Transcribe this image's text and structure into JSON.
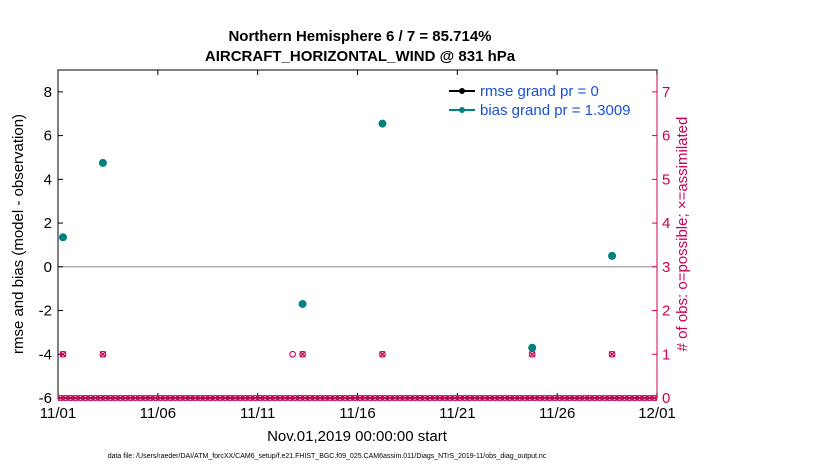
{
  "chart_data": {
    "type": "scatter",
    "title_line1": "Northern Hemisphere 6 / 7 = 85.714%",
    "title_line2": "AIRCRAFT_HORIZONTAL_WIND @ 831 hPa",
    "ylabel_left": "rmse and bias (model - observation)",
    "ylabel_right": "# of obs: o=possible; ×=assimilated",
    "xlabel": "Nov.01,2019 00:00:00 start",
    "footnote": "data file: /Users/raeder/DAI/ATM_forcXX/CAM6_setup/f.e21.FHIST_BGC.f09_025.CAM6assim.011/Diags_NTrS_2019-11/obs_diag_output.nc",
    "x_range": [
      0,
      30
    ],
    "y_left_range": [
      -6,
      9
    ],
    "y_right_range": [
      0,
      7.5
    ],
    "y_left_ticks": [
      "-6",
      "-4",
      "-2",
      "0",
      "2",
      "4",
      "6",
      "8"
    ],
    "y_left_tick_values": [
      -6,
      -4,
      -2,
      0,
      2,
      4,
      6,
      8
    ],
    "y_right_ticks": [
      "0",
      "1",
      "2",
      "3",
      "4",
      "5",
      "6",
      "7"
    ],
    "y_right_tick_values": [
      0,
      1,
      2,
      3,
      4,
      5,
      6,
      7
    ],
    "x_ticks": [
      "11/01",
      "11/06",
      "11/11",
      "11/16",
      "11/21",
      "11/26",
      "12/01"
    ],
    "x_tick_values": [
      0,
      5,
      10,
      15,
      20,
      25,
      30
    ],
    "legend": [
      {
        "label": "rmse grand pr = 0",
        "color": "#000000"
      },
      {
        "label": "bias grand pr = 1.3009",
        "color": "#008080"
      }
    ],
    "series": [
      {
        "name": "bias",
        "color": "#008080",
        "x": [
          0.25,
          2.25,
          12.25,
          16.25,
          23.75,
          27.75
        ],
        "y": [
          1.35,
          4.75,
          -1.7,
          6.55,
          -3.7,
          0.5
        ]
      },
      {
        "name": "obs_possible",
        "color": "#cc0055",
        "x": [
          0.25,
          2.25,
          11.75,
          12.25,
          16.25,
          23.75,
          27.75
        ],
        "y": [
          1,
          1,
          1,
          1,
          1,
          1,
          1
        ]
      },
      {
        "name": "obs_assimilated",
        "color": "#cc0055",
        "x": [
          0.25,
          2.25,
          12.25,
          16.25,
          23.75,
          27.75
        ],
        "y": [
          1,
          1,
          1,
          1,
          1,
          1
        ]
      }
    ],
    "zero_line_y": 0,
    "grid": false,
    "legend_position": "top-right"
  },
  "colors": {
    "bias": "#008080",
    "rmse": "#000000",
    "obs": "#cc0055",
    "legend_text": "#1a4fd6",
    "zero_line": "#b3b3b3"
  }
}
